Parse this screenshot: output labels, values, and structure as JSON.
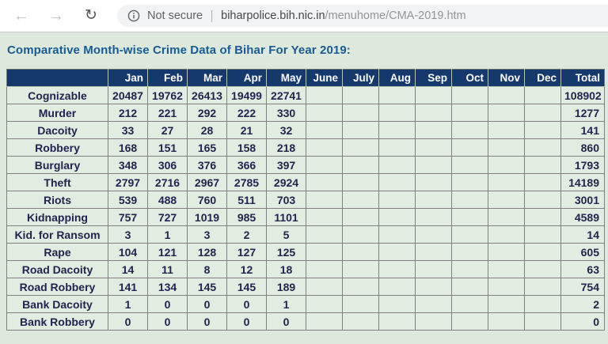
{
  "browser": {
    "back_icon": "back-arrow",
    "forward_icon": "forward-arrow",
    "reload_icon": "reload",
    "info_icon": "info-circle",
    "security_label": "Not secure",
    "url_domain": "biharpolice.bih.nic.in",
    "url_path": "/menuhome/CMA-2019.htm"
  },
  "page": {
    "title": "Comparative Month-wise Crime Data of Bihar For Year 2019:"
  },
  "table": {
    "header": [
      "",
      "Jan",
      "Feb",
      "Mar",
      "Apr",
      "May",
      "June",
      "July",
      "Aug",
      "Sep",
      "Oct",
      "Nov",
      "Dec",
      "Total"
    ],
    "rows": [
      {
        "label": "Cognizable",
        "monthly": [
          "20487",
          "19762",
          "26413",
          "19499",
          "22741"
        ],
        "total": "108902"
      },
      {
        "label": "Murder",
        "monthly": [
          "212",
          "221",
          "292",
          "222",
          "330"
        ],
        "total": "1277"
      },
      {
        "label": "Dacoity",
        "monthly": [
          "33",
          "27",
          "28",
          "21",
          "32"
        ],
        "total": "141"
      },
      {
        "label": "Robbery",
        "monthly": [
          "168",
          "151",
          "165",
          "158",
          "218"
        ],
        "total": "860"
      },
      {
        "label": "Burglary",
        "monthly": [
          "348",
          "306",
          "376",
          "366",
          "397"
        ],
        "total": "1793"
      },
      {
        "label": "Theft",
        "monthly": [
          "2797",
          "2716",
          "2967",
          "2785",
          "2924"
        ],
        "total": "14189"
      },
      {
        "label": "Riots",
        "monthly": [
          "539",
          "488",
          "760",
          "511",
          "703"
        ],
        "total": "3001"
      },
      {
        "label": "Kidnapping",
        "monthly": [
          "757",
          "727",
          "1019",
          "985",
          "1101"
        ],
        "total": "4589"
      },
      {
        "label": "Kid. for Ransom",
        "monthly": [
          "3",
          "1",
          "3",
          "2",
          "5"
        ],
        "total": "14"
      },
      {
        "label": "Rape",
        "monthly": [
          "104",
          "121",
          "128",
          "127",
          "125"
        ],
        "total": "605"
      },
      {
        "label": "Road Dacoity",
        "monthly": [
          "14",
          "11",
          "8",
          "12",
          "18"
        ],
        "total": "63"
      },
      {
        "label": "Road Robbery",
        "monthly": [
          "141",
          "134",
          "145",
          "145",
          "189"
        ],
        "total": "754"
      },
      {
        "label": "Bank Dacoity",
        "monthly": [
          "1",
          "0",
          "0",
          "0",
          "1"
        ],
        "total": "2"
      },
      {
        "label": "Bank Robbery",
        "monthly": [
          "0",
          "0",
          "0",
          "0",
          "0"
        ],
        "total": "0"
      }
    ]
  },
  "colors": {
    "page_background": "#dde9dd",
    "table_header_background": "#16396d",
    "table_header_text": "#ffffff",
    "cell_background": "#e1ede1",
    "cell_text": "#232350",
    "title_text": "#1a5a94",
    "omnibox_background": "#f1f3f4",
    "secondary_text": "#5f6368"
  }
}
